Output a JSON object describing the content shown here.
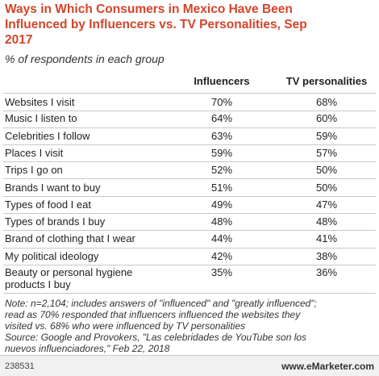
{
  "header": {
    "title": "Ways in Which Consumers in Mexico Have Been Influenced by Influencers vs. TV Personalities, Sep 2017",
    "subtitle": "% of respondents in each group"
  },
  "table": {
    "columns": [
      "Influencers",
      "TV personalities"
    ],
    "rows": [
      [
        "Websites I visit",
        "70%",
        "68%"
      ],
      [
        "Music I listen to",
        "64%",
        "60%"
      ],
      [
        "Celebrities I follow",
        "63%",
        "59%"
      ],
      [
        "Places I visit",
        "59%",
        "57%"
      ],
      [
        "Trips I go on",
        "52%",
        "50%"
      ],
      [
        "Brands I want to buy",
        "51%",
        "50%"
      ],
      [
        "Types of food I eat",
        "49%",
        "47%"
      ],
      [
        "Types of brands I buy",
        "48%",
        "48%"
      ],
      [
        "Brand of clothing that I wear",
        "44%",
        "41%"
      ],
      [
        "My political ideology",
        "42%",
        "38%"
      ],
      [
        "Beauty or personal hygiene products I buy",
        "35%",
        "36%"
      ]
    ]
  },
  "notes": [
    "Note: n=2,104; includes answers of \"influenced\" and \"greatly influenced\";",
    "read as 70% responded that influencers influenced the websites they",
    "visited vs. 68% who were influenced by TV personalities",
    "Source: Google and Provokers, \"Las celebridades de YouTube son los",
    "nuevos influenciadores,\" Feb 22, 2018"
  ],
  "footer": {
    "id": "238531",
    "site": "www.eMarketer.com"
  }
}
